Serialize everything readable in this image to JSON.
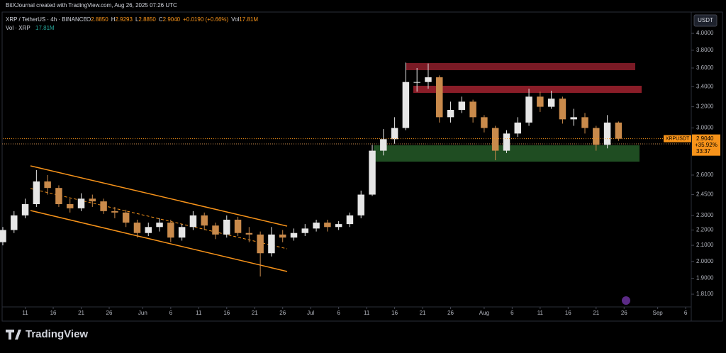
{
  "header": {
    "credit": "BitXJournal created with TradingView.com, Aug 26, 2025 07:26 UTC",
    "symbol": "XRP / TetherUS · 4h · BINANCE",
    "quote": [
      {
        "key": "O",
        "value": "2.8850"
      },
      {
        "key": "H",
        "value": "2.9293"
      },
      {
        "key": "L",
        "value": "2.8850"
      },
      {
        "key": "C",
        "value": "2.9040"
      },
      {
        "key": "",
        "value": "+0.0190 (+0.66%)"
      },
      {
        "key": "Vol",
        "value": "17.81M"
      }
    ],
    "volume_label": "Vol · XRP",
    "volume_value": "17.81M"
  },
  "footer": {
    "brand": "TradingView"
  },
  "chart_data": {
    "type": "candlestick",
    "x": [
      "May 7",
      "May 9",
      "May 11",
      "May 13",
      "May 15",
      "May 17",
      "May 19",
      "May 21",
      "May 23",
      "May 25",
      "May 27",
      "May 29",
      "May 31",
      "Jun 2",
      "Jun 4",
      "Jun 6",
      "Jun 8",
      "Jun 10",
      "Jun 12",
      "Jun 14",
      "Jun 16",
      "Jun 18",
      "Jun 20",
      "Jun 22",
      "Jun 24",
      "Jun 26",
      "Jun 28",
      "Jun 30",
      "Jul 2",
      "Jul 4",
      "Jul 6",
      "Jul 8",
      "Jul 10",
      "Jul 12",
      "Jul 14",
      "Jul 16",
      "Jul 18",
      "Jul 20",
      "Jul 22",
      "Jul 24",
      "Jul 26",
      "Jul 28",
      "Jul 30",
      "Aug 1",
      "Aug 3",
      "Aug 5",
      "Aug 7",
      "Aug 9",
      "Aug 11",
      "Aug 13",
      "Aug 15",
      "Aug 17",
      "Aug 19",
      "Aug 21",
      "Aug 23",
      "Aug 25"
    ],
    "open": [
      2.12,
      2.2,
      2.3,
      2.38,
      2.55,
      2.5,
      2.38,
      2.35,
      2.42,
      2.4,
      2.33,
      2.32,
      2.25,
      2.18,
      2.22,
      2.25,
      2.15,
      2.22,
      2.3,
      2.23,
      2.17,
      2.27,
      2.18,
      2.17,
      2.05,
      2.17,
      2.15,
      2.18,
      2.21,
      2.25,
      2.22,
      2.24,
      2.3,
      2.45,
      2.8,
      2.9,
      3.0,
      3.45,
      3.45,
      3.5,
      3.1,
      3.17,
      3.25,
      3.1,
      3.0,
      2.8,
      2.95,
      3.05,
      3.3,
      3.2,
      3.28,
      3.08,
      3.1,
      3.0,
      2.85,
      3.05
    ],
    "high": [
      2.22,
      2.33,
      2.42,
      2.64,
      2.6,
      2.52,
      2.42,
      2.46,
      2.45,
      2.42,
      2.36,
      2.34,
      2.27,
      2.25,
      2.28,
      2.27,
      2.24,
      2.33,
      2.32,
      2.25,
      2.3,
      2.29,
      2.22,
      2.19,
      2.22,
      2.2,
      2.21,
      2.24,
      2.27,
      2.27,
      2.26,
      2.32,
      2.48,
      2.85,
      2.99,
      3.1,
      3.66,
      3.6,
      3.65,
      3.52,
      3.25,
      3.3,
      3.27,
      3.12,
      3.02,
      2.98,
      3.1,
      3.38,
      3.35,
      3.36,
      3.3,
      3.18,
      3.14,
      3.02,
      3.12,
      3.06
    ],
    "low": [
      2.1,
      2.18,
      2.28,
      2.36,
      2.45,
      2.36,
      2.32,
      2.33,
      2.36,
      2.31,
      2.28,
      2.22,
      2.15,
      2.16,
      2.19,
      2.12,
      2.13,
      2.2,
      2.2,
      2.14,
      2.15,
      2.16,
      2.12,
      1.91,
      2.03,
      2.12,
      2.13,
      2.16,
      2.19,
      2.19,
      2.2,
      2.22,
      2.28,
      2.44,
      2.76,
      2.86,
      2.98,
      3.35,
      3.38,
      3.05,
      3.05,
      3.14,
      3.05,
      2.96,
      2.72,
      2.78,
      2.92,
      3.02,
      3.15,
      3.18,
      3.04,
      3.02,
      2.95,
      2.8,
      2.82,
      2.885
    ],
    "close": [
      2.2,
      2.3,
      2.38,
      2.55,
      2.5,
      2.38,
      2.35,
      2.42,
      2.4,
      2.33,
      2.32,
      2.25,
      2.18,
      2.22,
      2.25,
      2.15,
      2.22,
      2.3,
      2.23,
      2.17,
      2.27,
      2.18,
      2.17,
      2.05,
      2.17,
      2.15,
      2.18,
      2.21,
      2.25,
      2.22,
      2.24,
      2.3,
      2.45,
      2.8,
      2.9,
      3.0,
      3.45,
      3.45,
      3.5,
      3.1,
      3.17,
      3.25,
      3.1,
      3.0,
      2.8,
      2.95,
      3.05,
      3.3,
      3.2,
      3.28,
      3.08,
      3.1,
      3.0,
      2.85,
      3.05,
      2.904
    ],
    "up_color": "#e6e6e6",
    "down_color": "#c98a4b",
    "xlim": [
      "May 7",
      "Sep 7"
    ],
    "xticks": [
      {
        "value": "May 11",
        "label": "11"
      },
      {
        "value": "May 16",
        "label": "16"
      },
      {
        "value": "May 21",
        "label": "21"
      },
      {
        "value": "May 26",
        "label": "26"
      },
      {
        "value": "Jun 1",
        "label": "Jun"
      },
      {
        "value": "Jun 6",
        "label": "6"
      },
      {
        "value": "Jun 11",
        "label": "11"
      },
      {
        "value": "Jun 16",
        "label": "16"
      },
      {
        "value": "Jun 21",
        "label": "21"
      },
      {
        "value": "Jun 26",
        "label": "26"
      },
      {
        "value": "Jul 1",
        "label": "Jul"
      },
      {
        "value": "Jul 6",
        "label": "6"
      },
      {
        "value": "Jul 11",
        "label": "11"
      },
      {
        "value": "Jul 16",
        "label": "16"
      },
      {
        "value": "Jul 21",
        "label": "21"
      },
      {
        "value": "Jul 26",
        "label": "26"
      },
      {
        "value": "Aug 1",
        "label": "Aug"
      },
      {
        "value": "Aug 6",
        "label": "6"
      },
      {
        "value": "Aug 11",
        "label": "11"
      },
      {
        "value": "Aug 16",
        "label": "16"
      },
      {
        "value": "Aug 21",
        "label": "21"
      },
      {
        "value": "Aug 26",
        "label": "26"
      },
      {
        "value": "Sep 1",
        "label": "Sep"
      },
      {
        "value": "Sep 6",
        "label": "6"
      }
    ],
    "ylim": [
      1.745,
      4.15
    ],
    "log_scale": true,
    "yticks": [
      {
        "value": 4,
        "label": "4.0000"
      },
      {
        "value": 3.8,
        "label": "3.8000"
      },
      {
        "value": 3.6,
        "label": "3.6000"
      },
      {
        "value": 3.4,
        "label": "3.4000"
      },
      {
        "value": 3.2,
        "label": "3.2000"
      },
      {
        "value": 3,
        "label": "3.0000"
      },
      {
        "value": 2.6,
        "label": "2.6000"
      },
      {
        "value": 2.45,
        "label": "2.4500"
      },
      {
        "value": 2.3,
        "label": "2.3000"
      },
      {
        "value": 2.2,
        "label": "2.2000"
      },
      {
        "value": 2.1,
        "label": "2.1000"
      },
      {
        "value": 2,
        "label": "2.0000"
      },
      {
        "value": 1.9,
        "label": "1.9000"
      },
      {
        "value": 1.81,
        "label": "1.8100"
      }
    ],
    "currency": "USDT",
    "symbol_label": "XRPUSDT",
    "last_price": {
      "value": 2.904,
      "label": "2.9040"
    },
    "change_label": "+35.92%",
    "countdown": "33:37",
    "accent_color": "#f7931a"
  }
}
